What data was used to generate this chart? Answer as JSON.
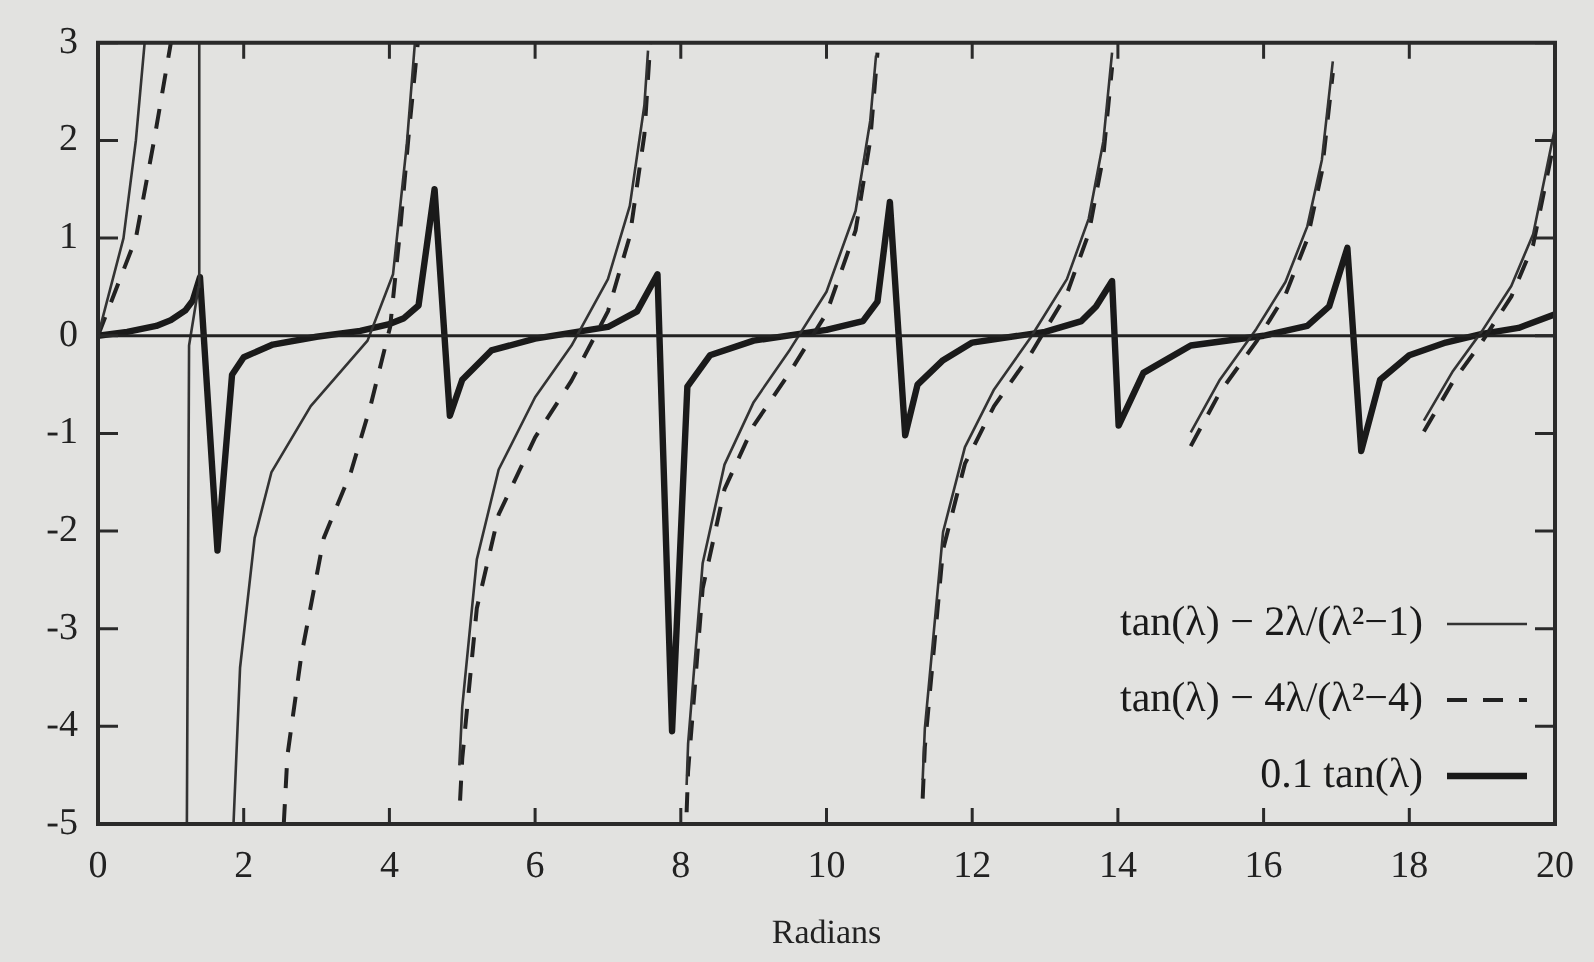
{
  "chart_data": {
    "type": "line",
    "xlabel": "Radians",
    "xlim": [
      0,
      20
    ],
    "xticks": [
      0,
      2,
      4,
      6,
      8,
      10,
      12,
      14,
      16,
      18,
      20
    ],
    "ylim": [
      -5,
      3
    ],
    "yticks": [
      -5,
      -4,
      -3,
      -2,
      -1,
      0,
      1,
      2,
      3
    ],
    "grid": false,
    "legend": "bottom right",
    "marker": "none",
    "ref_lines": [
      {
        "axis": "y",
        "value": 0,
        "color": "#222222"
      }
    ],
    "series": [
      {
        "name": "tan(λ) − 2λ/(λ²−1)",
        "color": "#333333",
        "line_style": "solid",
        "x": [
          0,
          0.35,
          0.52,
          0.64,
          0.9,
          1.22,
          1.25,
          1.38,
          1.39,
          1.6,
          1.86,
          1.95,
          2.15,
          2.38,
          2.92,
          3.7,
          4.05,
          4.24,
          4.35,
          4.6,
          4.96,
          5.0,
          5.2,
          5.5,
          6.0,
          6.5,
          7.0,
          7.3,
          7.5,
          7.55,
          7.8,
          8.08,
          8.1,
          8.3,
          8.6,
          9.0,
          9.5,
          10.0,
          10.4,
          10.6,
          10.68,
          11.0,
          11.32,
          11.35,
          11.6,
          11.9,
          12.3,
          12.8,
          13.3,
          13.6,
          13.8,
          13.92,
          14.5,
          15.0,
          15.4,
          15.9,
          16.3,
          16.6,
          16.8,
          16.95,
          17.5,
          18.2,
          18.6,
          19.0,
          19.4,
          19.7,
          20.0
        ],
        "values": [
          0,
          1,
          2,
          3,
          null,
          -5,
          -0.1,
          0.5,
          3,
          null,
          -5,
          -3.4,
          -2.07,
          -1.4,
          -0.72,
          -0.05,
          0.63,
          1.97,
          3,
          null,
          -4.4,
          -3.8,
          -2.29,
          -1.37,
          -0.63,
          -0.1,
          0.58,
          1.33,
          2.36,
          2.92,
          null,
          -4.6,
          -4.18,
          -2.33,
          -1.32,
          -0.68,
          -0.14,
          0.45,
          1.28,
          2.2,
          2.87,
          null,
          -4.55,
          -4.02,
          -2.01,
          -1.14,
          -0.55,
          -0.02,
          0.58,
          1.2,
          1.99,
          2.9,
          null,
          -0.99,
          -0.45,
          0.07,
          0.55,
          1.12,
          1.8,
          2.81,
          null,
          -0.87,
          -0.36,
          0.05,
          0.51,
          1.04,
          2.13
        ]
      },
      {
        "name": "tan(λ) − 4λ/(λ²−4)",
        "color": "#222222",
        "line_style": "dashed",
        "x": [
          0,
          0.52,
          0.77,
          1.0,
          1.5,
          2.55,
          2.6,
          2.79,
          3.1,
          3.47,
          3.74,
          4.01,
          4.15,
          4.27,
          4.39,
          4.7,
          4.97,
          5.0,
          5.2,
          5.5,
          6.0,
          6.5,
          7.0,
          7.3,
          7.5,
          7.58,
          7.8,
          8.08,
          8.1,
          8.3,
          8.6,
          9.0,
          9.5,
          10.0,
          10.4,
          10.6,
          10.7,
          11.0,
          11.32,
          11.35,
          11.6,
          11.9,
          12.3,
          12.8,
          13.3,
          13.6,
          13.8,
          13.92,
          14.5,
          15.0,
          15.4,
          15.9,
          16.3,
          16.6,
          16.8,
          16.95,
          17.5,
          18.2,
          18.6,
          19.0,
          19.4,
          19.7,
          20.0
        ],
        "values": [
          0,
          1,
          2,
          3,
          null,
          -5,
          -4.3,
          -3.28,
          -2.07,
          -1.4,
          -0.72,
          0.09,
          1.1,
          2.1,
          3,
          null,
          -4.76,
          -4.33,
          -2.79,
          -1.83,
          -1.04,
          -0.46,
          0.25,
          1.02,
          2.06,
          2.99,
          null,
          -4.88,
          -4.46,
          -2.59,
          -1.57,
          -0.92,
          -0.37,
          0.23,
          1.08,
          2.0,
          2.9,
          null,
          -4.74,
          -4.21,
          -2.19,
          -1.31,
          -0.72,
          -0.19,
          0.43,
          1.05,
          1.84,
          2.75,
          null,
          -1.13,
          -0.58,
          -0.06,
          0.42,
          0.99,
          1.68,
          2.69,
          null,
          -0.98,
          -0.47,
          -0.06,
          0.4,
          0.93,
          2.03
        ]
      },
      {
        "name": "0.1 tan(λ)",
        "color": "#1a1a1a",
        "line_style": "solid",
        "x": [
          0,
          0.4,
          0.8,
          1.0,
          1.2,
          1.3,
          1.4,
          1.64,
          1.84,
          2.0,
          2.4,
          3.0,
          3.6,
          4.0,
          4.2,
          4.4,
          4.62,
          4.83,
          5.0,
          5.4,
          6.0,
          7.0,
          7.4,
          7.68,
          7.88,
          8.09,
          8.4,
          9.0,
          10.0,
          10.5,
          10.7,
          10.87,
          11.08,
          11.25,
          11.6,
          12.0,
          13.0,
          13.5,
          13.7,
          13.92,
          14.01,
          14.35,
          15.0,
          16.0,
          16.6,
          16.9,
          17.15,
          17.34,
          17.6,
          18.0,
          18.5,
          19.0,
          19.5,
          20.0
        ],
        "values": [
          0,
          0.04,
          0.1,
          0.16,
          0.26,
          0.36,
          0.6,
          -2.2,
          -0.4,
          -0.22,
          -0.09,
          -0.01,
          0.05,
          0.12,
          0.18,
          0.31,
          1.5,
          -0.82,
          -0.45,
          -0.15,
          -0.03,
          0.09,
          0.25,
          0.63,
          -4.05,
          -0.52,
          -0.2,
          -0.05,
          0.06,
          0.15,
          0.35,
          1.37,
          -1.02,
          -0.5,
          -0.25,
          -0.07,
          0.04,
          0.15,
          0.3,
          0.56,
          -0.92,
          -0.38,
          -0.1,
          0,
          0.1,
          0.3,
          0.9,
          -1.18,
          -0.45,
          -0.2,
          -0.07,
          0.02,
          0.08,
          0.22
        ]
      }
    ]
  }
}
